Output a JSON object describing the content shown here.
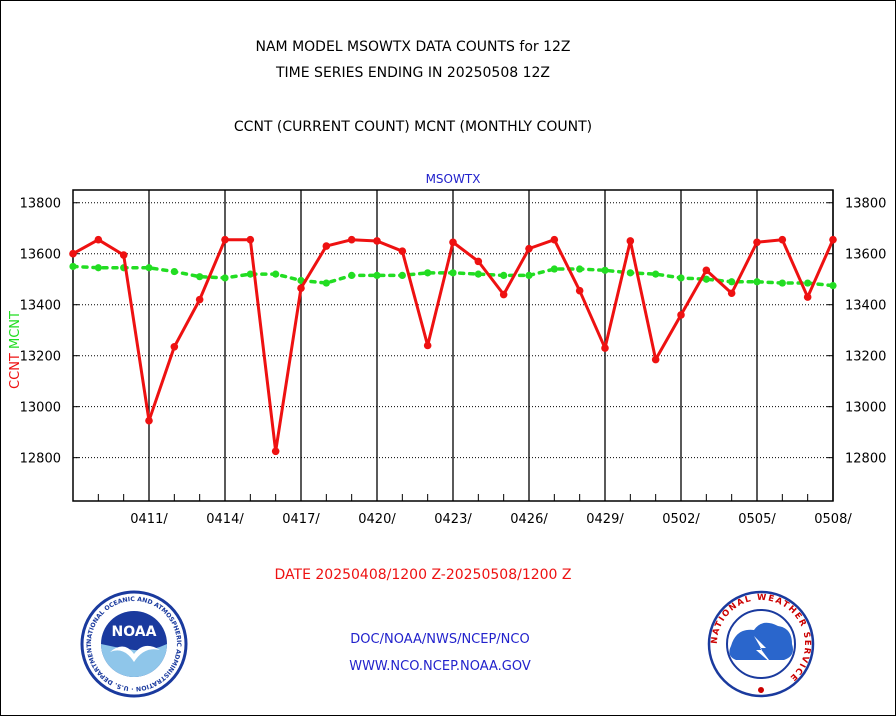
{
  "header": {
    "line1": "NAM MODEL MSOWTX DATA COUNTS for 12Z",
    "line2": "TIME SERIES ENDING IN 20250508 12Z",
    "line3": "CCNT (CURRENT COUNT) MCNT (MONTHLY COUNT)"
  },
  "footer": {
    "org": "DOC/NOAA/NWS/NCEP/NCO",
    "url": "WWW.NCO.NCEP.NOAA.GOV"
  },
  "logos": {
    "noaa_wordmark": "NOAA",
    "noaa_ring": "NATIONAL OCEANIC AND ATMOSPHERIC ADMINISTRATION · U.S. DEPARTMENT OF COMMERCE ·",
    "nws_ring": "NATIONAL WEATHER SERVICE"
  },
  "colors": {
    "ccnt": "#ee1111",
    "mcnt": "#22dd22",
    "plot_title": "#2222cc",
    "date_label": "#ee1111",
    "noaa_blue": "#1a3a9e",
    "nws_blue": "#2a66cc"
  },
  "chart_data": {
    "type": "line",
    "title": "MSOWTX",
    "xlabel": "DATE 20250408/1200 Z-20250508/1200 Z",
    "ylabel_left": [
      "CCNT",
      "MCNT"
    ],
    "ylim": [
      12630,
      13850
    ],
    "yticks": [
      12800,
      13000,
      13200,
      13400,
      13600,
      13800
    ],
    "ytick_labels": [
      "12800",
      "13000",
      "13200",
      "13400",
      "13600",
      "13800"
    ],
    "x_date_range": [
      "2025-04-08",
      "2025-05-08"
    ],
    "xtick_dates": [
      "2025-04-11",
      "2025-04-14",
      "2025-04-17",
      "2025-04-20",
      "2025-04-23",
      "2025-04-26",
      "2025-04-29",
      "2025-05-02",
      "2025-05-05",
      "2025-05-08"
    ],
    "xtick_labels": [
      "0411/",
      "0414/",
      "0417/",
      "0420/",
      "0423/",
      "0426/",
      "0429/",
      "0502/",
      "0505/",
      "0508/"
    ],
    "grid": true,
    "series": [
      {
        "name": "CCNT",
        "dates": [
          "2025-04-08",
          "2025-04-09",
          "2025-04-10",
          "2025-04-11",
          "2025-04-12",
          "2025-04-13",
          "2025-04-14",
          "2025-04-15",
          "2025-04-16",
          "2025-04-17",
          "2025-04-18",
          "2025-04-19",
          "2025-04-20",
          "2025-04-21",
          "2025-04-22",
          "2025-04-23",
          "2025-04-24",
          "2025-04-25",
          "2025-04-26",
          "2025-04-27",
          "2025-04-28",
          "2025-04-29",
          "2025-04-30",
          "2025-05-01",
          "2025-05-02",
          "2025-05-03",
          "2025-05-04",
          "2025-05-05",
          "2025-05-06",
          "2025-05-07",
          "2025-05-08"
        ],
        "values": [
          13600,
          13655,
          13595,
          12945,
          13235,
          13420,
          13655,
          13655,
          12825,
          13465,
          13630,
          13655,
          13650,
          13610,
          13240,
          13645,
          13570,
          13440,
          13620,
          13655,
          13455,
          13230,
          13650,
          13185,
          13360,
          13535,
          13445,
          13645,
          13655,
          13430,
          13655
        ]
      },
      {
        "name": "MCNT",
        "dates": [
          "2025-04-08",
          "2025-04-09",
          "2025-04-10",
          "2025-04-11",
          "2025-04-12",
          "2025-04-13",
          "2025-04-14",
          "2025-04-15",
          "2025-04-16",
          "2025-04-17",
          "2025-04-18",
          "2025-04-19",
          "2025-04-20",
          "2025-04-21",
          "2025-04-22",
          "2025-04-23",
          "2025-04-24",
          "2025-04-25",
          "2025-04-26",
          "2025-04-27",
          "2025-04-28",
          "2025-04-29",
          "2025-04-30",
          "2025-05-01",
          "2025-05-02",
          "2025-05-03",
          "2025-05-04",
          "2025-05-05",
          "2025-05-06",
          "2025-05-07",
          "2025-05-08"
        ],
        "values": [
          13550,
          13545,
          13545,
          13545,
          13530,
          13510,
          13505,
          13520,
          13520,
          13495,
          13485,
          13515,
          13515,
          13515,
          13525,
          13525,
          13520,
          13515,
          13515,
          13540,
          13540,
          13535,
          13525,
          13520,
          13505,
          13500,
          13490,
          13490,
          13485,
          13485,
          13475
        ]
      }
    ]
  }
}
